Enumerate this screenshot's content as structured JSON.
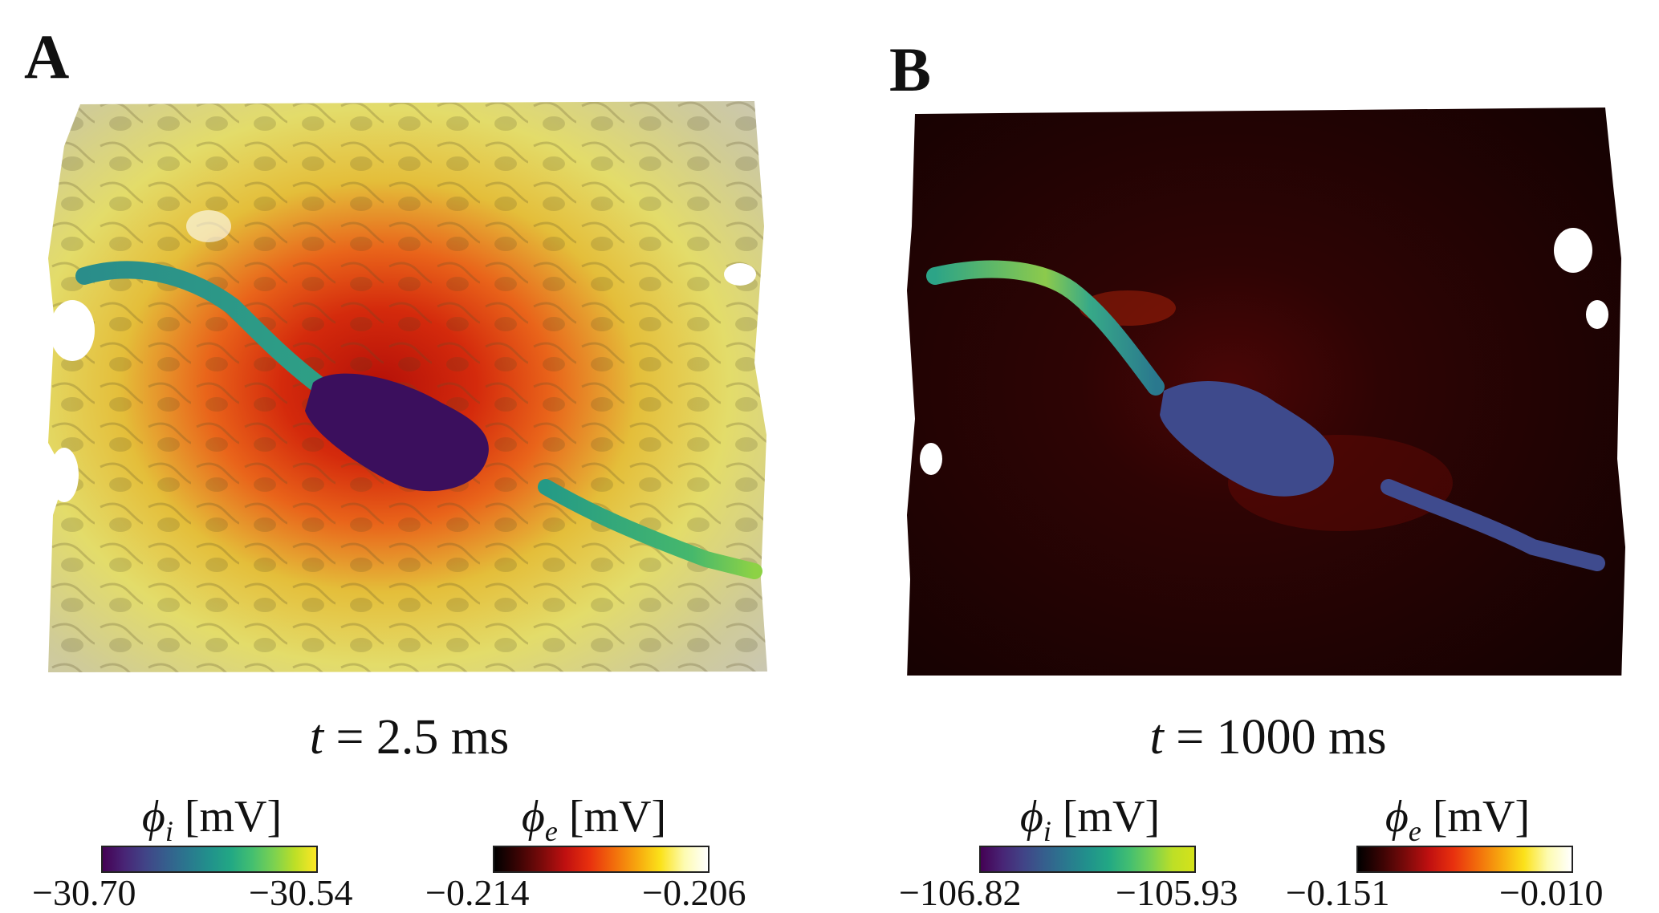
{
  "panels": [
    {
      "letter": "A",
      "time_var": "t",
      "time_value": " = 2.5 ms",
      "colorbars": [
        {
          "symbol": "ϕ",
          "subscript": "i",
          "unit": " [mV]",
          "min": "−30.70",
          "max": "−30.54"
        },
        {
          "symbol": "ϕ",
          "subscript": "e",
          "unit": " [mV]",
          "min": "−0.214",
          "max": "−0.206"
        }
      ]
    },
    {
      "letter": "B",
      "time_var": "t",
      "time_value": " = 1000 ms",
      "colorbars": [
        {
          "symbol": "ϕ",
          "subscript": "i",
          "unit": " [mV]",
          "min": "−106.82",
          "max": "−105.93"
        },
        {
          "symbol": "ϕ",
          "subscript": "e",
          "unit": " [mV]",
          "min": "−0.151",
          "max": "−0.010"
        }
      ]
    }
  ],
  "colors": {
    "background": "#ffffff",
    "panelA_extracellular_low": "#c81a0a",
    "panelA_extracellular_high": "#e8e06a",
    "panelB_extracellular": "#1e0303",
    "cell_body_A": "#3e0f5e",
    "cell_body_B": "#3d4a8c",
    "process": "#27a38a"
  },
  "icons": [
    "neuron-render-A",
    "neuron-render-B"
  ]
}
